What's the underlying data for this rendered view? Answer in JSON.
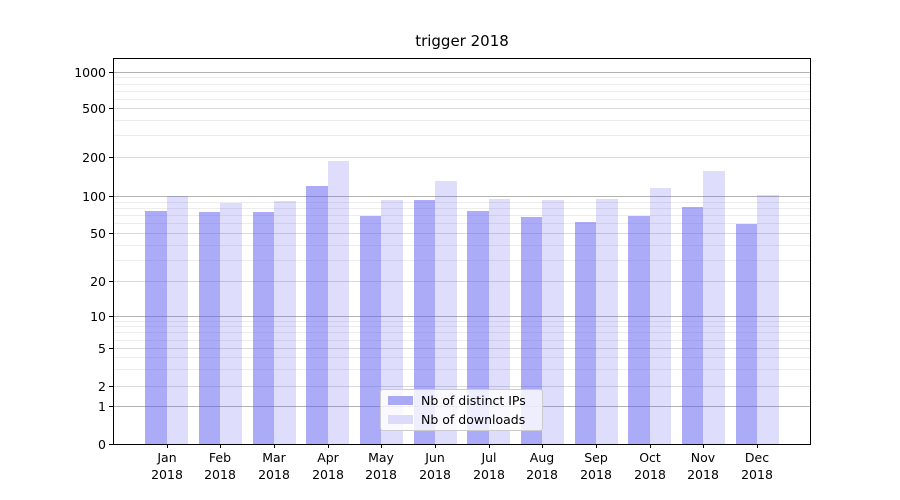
{
  "title": "trigger 2018",
  "chart_data": {
    "type": "bar",
    "title": "trigger 2018",
    "categories": [
      "Jan",
      "Feb",
      "Mar",
      "Apr",
      "May",
      "Jun",
      "Jul",
      "Aug",
      "Sep",
      "Oct",
      "Nov",
      "Dec"
    ],
    "category_year": "2018",
    "series": [
      {
        "name": "Nb of distinct IPs",
        "values": [
          75,
          74,
          74,
          120,
          69,
          92,
          75,
          68,
          61,
          69,
          82,
          59
        ],
        "swatch_hex": "#a9a9f4",
        "fill": "rgba(88,88,240,0.50)"
      },
      {
        "name": "Nb of downloads",
        "values": [
          100,
          88,
          91,
          185,
          93,
          130,
          95,
          92,
          94,
          115,
          155,
          102
        ],
        "swatch_hex": "#dcdcfa",
        "fill": "rgba(88,88,240,0.20)"
      }
    ],
    "yscale": "symlog",
    "y_ticks": [
      0,
      1,
      2,
      5,
      10,
      20,
      50,
      100,
      200,
      500,
      1000
    ],
    "ylim": [
      0,
      1050
    ],
    "xlabel": "",
    "ylabel": "",
    "grid": true,
    "legend_position": "lower center"
  }
}
